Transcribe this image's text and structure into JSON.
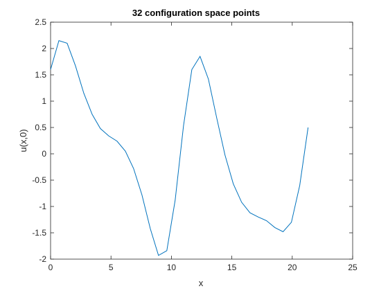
{
  "chart_data": {
    "type": "line",
    "title": "32 configuration space points",
    "xlabel": "x",
    "ylabel": "u(x,0)",
    "xlim": [
      0,
      25
    ],
    "ylim": [
      -2,
      2.5
    ],
    "xticks": [
      0,
      5,
      10,
      15,
      20,
      25
    ],
    "yticks": [
      -2,
      -1.5,
      -1,
      -0.5,
      0,
      0.5,
      1,
      1.5,
      2,
      2.5
    ],
    "xtick_labels": [
      "0",
      "5",
      "10",
      "15",
      "20",
      "25"
    ],
    "ytick_labels": [
      "-2",
      "-1.5",
      "-1",
      "-0.5",
      "0",
      "0.5",
      "1",
      "1.5",
      "2",
      "2.5"
    ],
    "grid": false,
    "line_color": "#0072bd",
    "series": [
      {
        "x": [
          0,
          0.69,
          1.37,
          2.06,
          2.75,
          3.44,
          4.12,
          4.81,
          5.5,
          6.19,
          6.87,
          7.56,
          8.25,
          8.93,
          9.62,
          10.31,
          11.0,
          11.69,
          12.37,
          13.06,
          13.75,
          14.43,
          15.12,
          15.81,
          16.5,
          17.18,
          17.87,
          18.56,
          19.24,
          19.93,
          20.62,
          21.31
        ],
        "y": [
          1.6,
          2.15,
          2.1,
          1.67,
          1.15,
          0.75,
          0.48,
          0.34,
          0.24,
          0.05,
          -0.28,
          -0.78,
          -1.42,
          -1.93,
          -1.84,
          -0.88,
          0.53,
          1.6,
          1.85,
          1.42,
          0.68,
          -0.02,
          -0.57,
          -0.92,
          -1.12,
          -1.2,
          -1.27,
          -1.4,
          -1.48,
          -1.3,
          -0.6,
          0.5
        ]
      }
    ]
  }
}
